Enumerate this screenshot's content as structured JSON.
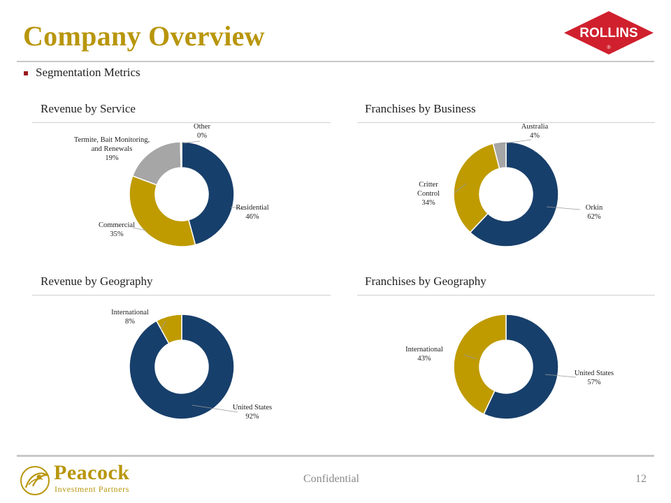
{
  "header": {
    "title": "Company Overview",
    "logo_text": "ROLLINS",
    "logo_mark": "®"
  },
  "bullet": {
    "text": "Segmentation Metrics"
  },
  "sections": {
    "revenue_by_service": "Revenue by Service",
    "franchises_by_business": "Franchises by Business",
    "revenue_by_geography": "Revenue by Geography",
    "franchises_by_geography": "Franchises by Geography"
  },
  "footer": {
    "confidential": "Confidential",
    "page_number": "12",
    "brand_name": "Peacock",
    "brand_sub": "Investment Partners"
  },
  "colors": {
    "navy": "#173F6B",
    "gold": "#BF9B00",
    "gray": "#A6A6A6",
    "title_gold": "#B8960C",
    "rollins_red": "#D0202E"
  },
  "chart_data": [
    {
      "type": "pie",
      "title": "Revenue by Service",
      "slices": [
        {
          "name": "Residential",
          "label_lines": [
            "Residential",
            "46%"
          ],
          "value": 46,
          "color": "#173F6B"
        },
        {
          "name": "Commercial",
          "label_lines": [
            "Commercial",
            "35%"
          ],
          "value": 35,
          "color": "#BF9B00"
        },
        {
          "name": "Termite, Bait Monitoring, and Renewals",
          "label_lines": [
            "Termite, Bait Monitoring,",
            "and Renewals",
            "19%"
          ],
          "value": 19,
          "color": "#A6A6A6"
        },
        {
          "name": "Other",
          "label_lines": [
            "Other",
            "0%"
          ],
          "value": 0.4,
          "color": "#BF9B00"
        }
      ]
    },
    {
      "type": "pie",
      "title": "Franchises by Business",
      "slices": [
        {
          "name": "Orkin",
          "label_lines": [
            "Orkin",
            "62%"
          ],
          "value": 62,
          "color": "#173F6B"
        },
        {
          "name": "Critter Control",
          "label_lines": [
            "Critter",
            "Control",
            "34%"
          ],
          "value": 34,
          "color": "#BF9B00"
        },
        {
          "name": "Australia",
          "label_lines": [
            "Australia",
            "4%"
          ],
          "value": 4,
          "color": "#A6A6A6"
        }
      ]
    },
    {
      "type": "pie",
      "title": "Revenue by Geography",
      "slices": [
        {
          "name": "United States",
          "label_lines": [
            "United States",
            "92%"
          ],
          "value": 92,
          "color": "#173F6B"
        },
        {
          "name": "International",
          "label_lines": [
            "International",
            "8%"
          ],
          "value": 8,
          "color": "#BF9B00"
        }
      ]
    },
    {
      "type": "pie",
      "title": "Franchises by Geography",
      "slices": [
        {
          "name": "United States",
          "label_lines": [
            "United States",
            "57%"
          ],
          "value": 57,
          "color": "#173F6B"
        },
        {
          "name": "International",
          "label_lines": [
            "International",
            "43%"
          ],
          "value": 43,
          "color": "#BF9B00"
        }
      ]
    }
  ]
}
